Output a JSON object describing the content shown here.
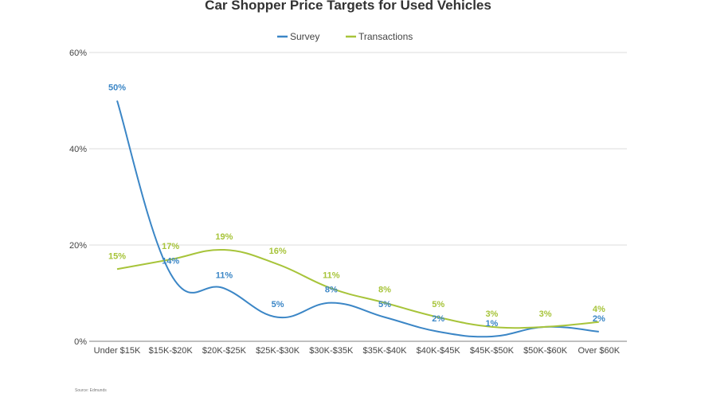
{
  "chart_data": {
    "type": "line",
    "title": "Car Shopper Price Targets for Used Vehicles",
    "categories": [
      "Under $15K",
      "$15K-$20K",
      "$20K-$25K",
      "$25K-$30K",
      "$30K-$35K",
      "$35K-$40K",
      "$40K-$45K",
      "$45K-$50K",
      "$50K-$60K",
      "Over $60K"
    ],
    "ylim": [
      0,
      60
    ],
    "yticks": [
      "0%",
      "20%",
      "40%",
      "60%"
    ],
    "ytick_values": [
      0,
      20,
      40,
      60
    ],
    "grid": true,
    "legend_position": "top",
    "series": [
      {
        "name": "Survey",
        "color": "#3b86c6",
        "values": [
          50,
          14,
          11,
          5,
          8,
          5,
          2,
          1,
          3,
          2
        ],
        "labels": [
          "50%",
          "14%",
          "11%",
          "5%",
          "8%",
          "5%",
          "2%",
          "1%",
          null,
          "2%"
        ]
      },
      {
        "name": "Transactions",
        "color": "#a7c43a",
        "values": [
          15,
          17,
          19,
          16,
          11,
          8,
          5,
          3,
          3,
          4
        ],
        "labels": [
          "15%",
          "17%",
          "19%",
          "16%",
          "11%",
          "8%",
          "5%",
          "3%",
          "3%",
          "4%"
        ]
      }
    ],
    "source": "Source: Edmunds"
  }
}
